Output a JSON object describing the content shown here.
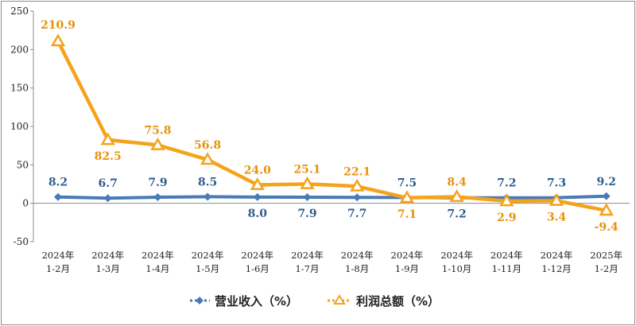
{
  "chart_data": {
    "type": "line",
    "categories": [
      [
        "2024年",
        "1-2月"
      ],
      [
        "2024年",
        "1-3月"
      ],
      [
        "2024年",
        "1-4月"
      ],
      [
        "2024年",
        "1-5月"
      ],
      [
        "2024年",
        "1-6月"
      ],
      [
        "2024年",
        "1-7月"
      ],
      [
        "2024年",
        "1-8月"
      ],
      [
        "2024年",
        "1-9月"
      ],
      [
        "2024年",
        "1-10月"
      ],
      [
        "2024年",
        "1-11月"
      ],
      [
        "2024年",
        "1-12月"
      ],
      [
        "2025年",
        "1-2月"
      ]
    ],
    "series": [
      {
        "name": "营业收入（%）",
        "color": "#4a7ab5",
        "marker": "diamond",
        "values": [
          8.2,
          6.7,
          7.9,
          8.5,
          8.0,
          7.9,
          7.7,
          7.5,
          7.2,
          7.2,
          7.3,
          9.2
        ],
        "labels": [
          "8.2",
          "6.7",
          "7.9",
          "8.5",
          "8.0",
          "7.9",
          "7.7",
          "7.5",
          "7.2",
          "7.2",
          "7.3",
          "9.2"
        ],
        "label_color": "#2e5d8e"
      },
      {
        "name": "利润总额（%）",
        "color": "#f5a31a",
        "marker": "triangle",
        "values": [
          210.9,
          82.5,
          75.8,
          56.8,
          24.0,
          25.1,
          22.1,
          7.1,
          8.4,
          2.9,
          3.4,
          -9.4
        ],
        "labels": [
          "210.9",
          "82.5",
          "75.8",
          "56.8",
          "24.0",
          "25.1",
          "22.1",
          "7.1",
          "8.4",
          "2.9",
          "3.4",
          "-9.4"
        ],
        "label_color": "#e8920c"
      }
    ],
    "y_ticks": [
      "250",
      "200",
      "150",
      "100",
      "50",
      "0",
      "-50"
    ],
    "ylim": [
      -50,
      250
    ],
    "grid": false,
    "legend_position": "bottom"
  }
}
